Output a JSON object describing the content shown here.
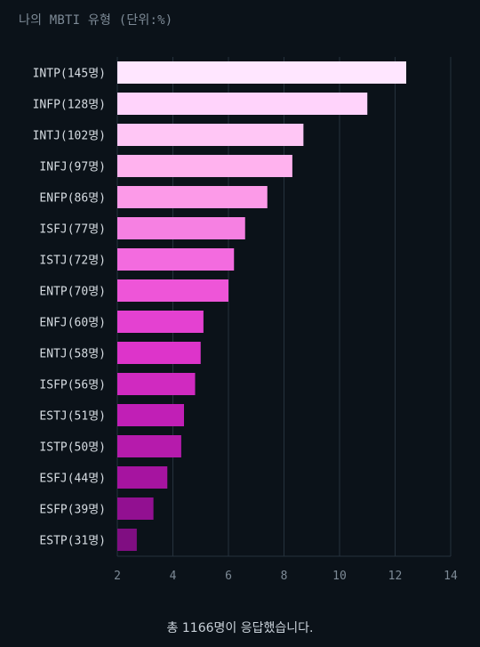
{
  "chart_data": {
    "type": "bar",
    "orientation": "horizontal",
    "title": "나의 MBTI 유형 (단위:%)",
    "xlim": [
      2,
      14
    ],
    "xticks": [
      2,
      4,
      6,
      8,
      10,
      12,
      14
    ],
    "grid": true,
    "categories": [
      "INTP(145명)",
      "INFP(128명)",
      "INTJ(102명)",
      "INFJ(97명)",
      "ENFP(86명)",
      "ISFJ(77명)",
      "ISTJ(72명)",
      "ENTP(70명)",
      "ENFJ(60명)",
      "ENTJ(58명)",
      "ISFP(56명)",
      "ESTJ(51명)",
      "ISTP(50명)",
      "ESFJ(44명)",
      "ESFP(39명)",
      "ESTP(31명)"
    ],
    "values": [
      12.4,
      11.0,
      8.7,
      8.3,
      7.4,
      6.6,
      6.2,
      6.0,
      5.1,
      5.0,
      4.8,
      4.4,
      4.3,
      3.8,
      3.3,
      2.7
    ],
    "colors": [
      "#ffe6ff",
      "#ffd3fb",
      "#ffc6f5",
      "#ffb2ee",
      "#fc9ae8",
      "#f680e2",
      "#f36bdf",
      "#ee55d8",
      "#e441d1",
      "#dd34ca",
      "#d02ac0",
      "#c11fb6",
      "#b61bac",
      "#a614a0",
      "#921091",
      "#800e82"
    ],
    "footer": "총 1166명이 응답했습니다."
  }
}
